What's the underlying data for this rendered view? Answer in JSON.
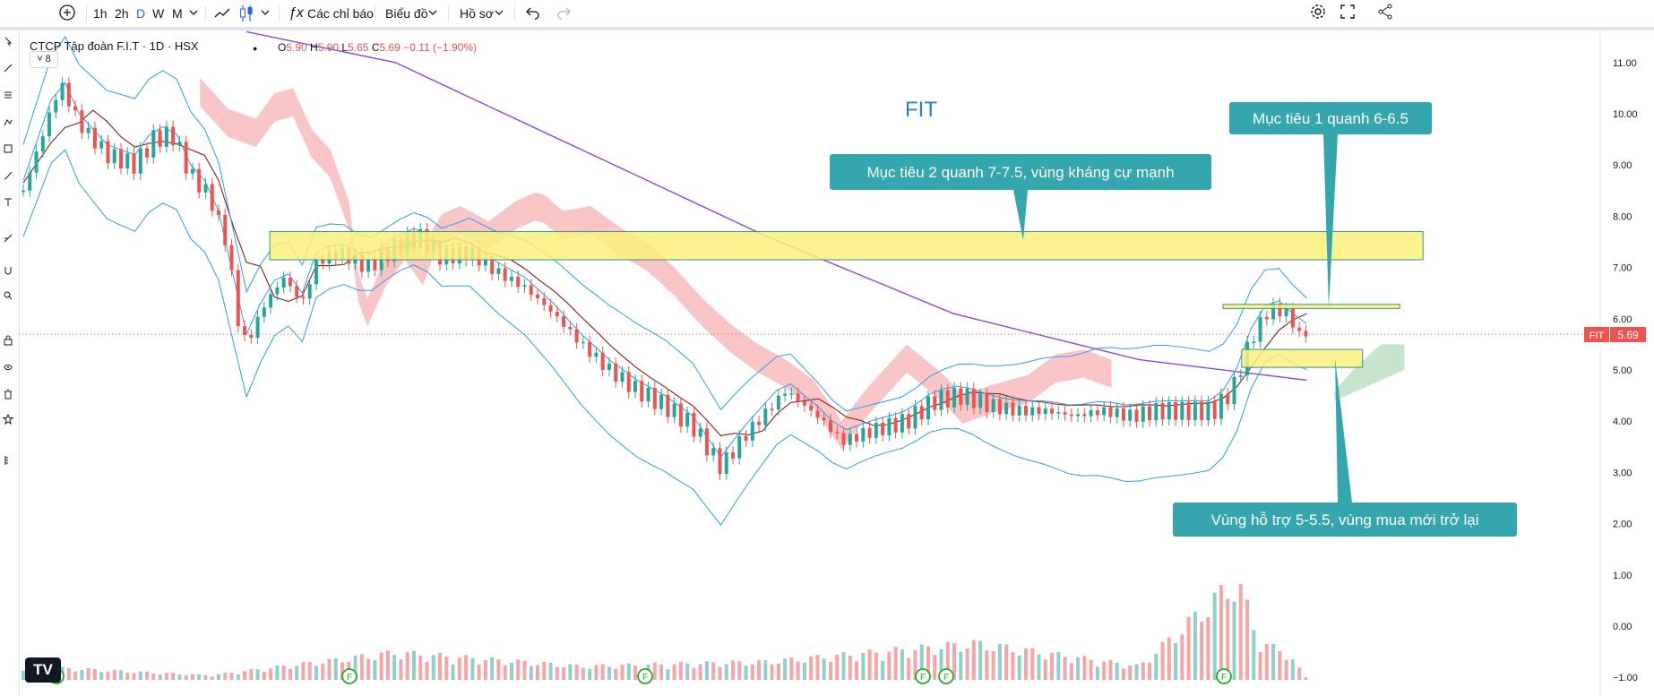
{
  "toolbar": {
    "intervals": [
      "1h",
      "2h",
      "D",
      "W",
      "M"
    ],
    "active_interval": "D",
    "indicators_label": "Các chỉ báo",
    "chart_label": "Biểu đồ",
    "profile_label": "Hồ sơ"
  },
  "legend": {
    "title": "CTCP Tập đoàn F.I.T · 1D · HSX",
    "o_label": "O",
    "o_value": "5.90",
    "h_label": "H",
    "h_value": "5.90",
    "l_label": "L",
    "l_value": "5.65",
    "c_label": "C",
    "c_value": "5.69",
    "change": "−0.11 (−1.90%)",
    "collapse_count": "8"
  },
  "colors": {
    "up": "#26a69a",
    "down": "#ef5350",
    "volume_up": "#8fd1c9",
    "volume_down": "#f7a5a6",
    "sma200": "#8e44e0",
    "kijun": "#8b1a1a",
    "tenkan": "#2a9df4",
    "bollinger": "#2a9df4",
    "cloud_bear": "#f7b2b4",
    "cloud_bull": "#b9dfc0",
    "target_zone": "#fbf07c",
    "callout": "#35a6ad"
  },
  "chart_data": {
    "type": "candlestick",
    "symbol_watermark": "FIT",
    "ylim": [
      -1.1,
      11.4
    ],
    "y_ticks": [
      "11.00",
      "10.00",
      "9.00",
      "8.00",
      "7.00",
      "6.00",
      "5.00",
      "4.00",
      "3.00",
      "2.00",
      "1.00",
      "0.00",
      "−1.00"
    ],
    "price_tag": {
      "symbol": "FIT",
      "value": "5.69"
    },
    "price_path": [
      [
        0,
        8.5
      ],
      [
        8,
        10.6
      ],
      [
        12,
        9.8
      ],
      [
        18,
        9.2
      ],
      [
        24,
        9.0
      ],
      [
        28,
        9.5
      ],
      [
        32,
        9.6
      ],
      [
        36,
        8.8
      ],
      [
        40,
        8.4
      ],
      [
        44,
        7.4
      ],
      [
        46,
        6.0
      ],
      [
        48,
        5.5
      ],
      [
        52,
        6.3
      ],
      [
        56,
        6.8
      ],
      [
        60,
        6.3
      ],
      [
        63,
        7.1
      ],
      [
        68,
        7.3
      ],
      [
        74,
        7.0
      ],
      [
        80,
        7.4
      ],
      [
        85,
        7.6
      ],
      [
        90,
        7.2
      ],
      [
        96,
        7.3
      ],
      [
        102,
        6.9
      ],
      [
        108,
        6.6
      ],
      [
        114,
        6.1
      ],
      [
        120,
        5.5
      ],
      [
        126,
        5.0
      ],
      [
        132,
        4.6
      ],
      [
        138,
        4.3
      ],
      [
        144,
        3.9
      ],
      [
        150,
        3.1
      ],
      [
        155,
        3.7
      ],
      [
        160,
        4.2
      ],
      [
        164,
        4.6
      ],
      [
        168,
        4.3
      ],
      [
        172,
        4.0
      ],
      [
        176,
        3.6
      ],
      [
        182,
        3.8
      ],
      [
        190,
        4.0
      ],
      [
        196,
        4.4
      ],
      [
        202,
        4.5
      ],
      [
        208,
        4.3
      ],
      [
        214,
        4.2
      ],
      [
        220,
        4.2
      ],
      [
        226,
        4.1
      ],
      [
        232,
        4.2
      ],
      [
        238,
        4.1
      ],
      [
        244,
        4.2
      ],
      [
        256,
        4.2
      ],
      [
        260,
        4.6
      ],
      [
        264,
        5.6
      ],
      [
        268,
        6.2
      ],
      [
        272,
        6.1
      ],
      [
        274,
        5.7
      ],
      [
        276,
        5.7
      ]
    ],
    "volume_series": [
      [
        0,
        0.3
      ],
      [
        40,
        0.1
      ],
      [
        80,
        0.6
      ],
      [
        120,
        0.3
      ],
      [
        160,
        0.4
      ],
      [
        205,
        0.8
      ],
      [
        240,
        0.3
      ],
      [
        261,
        2.2
      ],
      [
        266,
        0.8
      ],
      [
        272,
        0.6
      ],
      [
        276,
        0.0
      ]
    ],
    "series": [
      {
        "name": "SMA200",
        "values": [
          [
            48,
            11.6
          ],
          [
            80,
            11.0
          ],
          [
            120,
            9.3
          ],
          [
            160,
            7.6
          ],
          [
            200,
            6.1
          ],
          [
            240,
            5.2
          ],
          [
            276,
            4.8
          ]
        ]
      }
    ],
    "zones": [
      {
        "from_x": 53,
        "to_x": 301,
        "from_y": 7.15,
        "to_y": 7.7
      },
      {
        "from_x": 258,
        "to_x": 296,
        "from_y": 6.2,
        "to_y": 6.28
      },
      {
        "from_x": 262,
        "to_x": 288,
        "from_y": 5.05,
        "to_y": 5.4
      }
    ],
    "annotations": [
      {
        "text": "Mục tiêu 1 quanh 6-6.5"
      },
      {
        "text": "Mục tiêu 2 quanh 7-7.5, vùng kháng cự mạnh"
      },
      {
        "text": "Vùng hỗ trợ 5-5.5, vùng mua mới trở lại"
      }
    ]
  },
  "logo_text": "TV"
}
